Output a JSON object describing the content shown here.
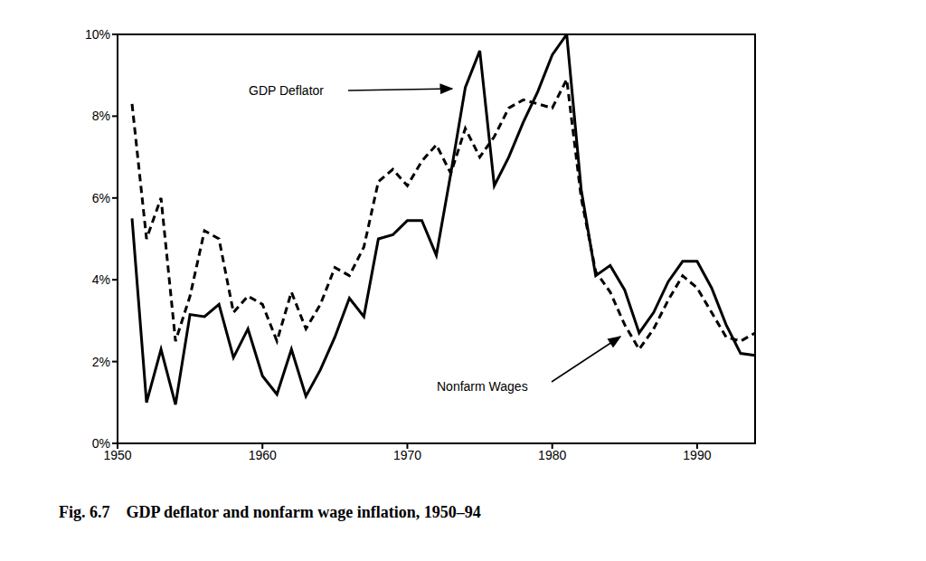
{
  "chart_data": {
    "type": "line",
    "title": "Fig. 6.7    GDP deflator and nonfarm wage inflation, 1950–94",
    "x": [
      1951,
      1952,
      1953,
      1954,
      1955,
      1956,
      1957,
      1958,
      1959,
      1960,
      1961,
      1962,
      1963,
      1964,
      1965,
      1966,
      1967,
      1968,
      1969,
      1970,
      1971,
      1972,
      1973,
      1974,
      1975,
      1976,
      1977,
      1978,
      1979,
      1980,
      1981,
      1982,
      1983,
      1984,
      1985,
      1986,
      1987,
      1988,
      1989,
      1990,
      1991,
      1992,
      1993,
      1994
    ],
    "series": [
      {
        "name": "GDP Deflator",
        "color": "#000000",
        "line_style": "solid",
        "values": [
          5.5,
          1.0,
          2.3,
          0.95,
          3.15,
          3.1,
          3.4,
          2.1,
          2.8,
          1.65,
          1.2,
          2.3,
          1.15,
          1.8,
          2.6,
          3.55,
          3.1,
          5.0,
          5.1,
          5.45,
          5.45,
          4.6,
          6.6,
          8.7,
          9.6,
          6.3,
          7.0,
          7.85,
          8.6,
          9.5,
          10.0,
          6.2,
          4.1,
          4.35,
          3.75,
          2.7,
          3.2,
          3.95,
          4.45,
          4.45,
          3.8,
          2.9,
          2.2,
          2.15
        ]
      },
      {
        "name": "Nonfarm Wages",
        "color": "#000000",
        "line_style": "dashed",
        "values": [
          8.3,
          5.0,
          6.0,
          2.5,
          3.6,
          5.2,
          5.0,
          3.2,
          3.6,
          3.4,
          2.5,
          3.7,
          2.8,
          3.4,
          4.3,
          4.1,
          4.8,
          6.4,
          6.7,
          6.3,
          6.9,
          7.3,
          6.6,
          7.7,
          7.0,
          7.5,
          8.2,
          8.4,
          8.3,
          8.2,
          8.9,
          6.0,
          4.2,
          3.7,
          2.9,
          2.3,
          2.8,
          3.5,
          4.1,
          3.8,
          3.2,
          2.6,
          2.5,
          2.7
        ]
      }
    ],
    "xlim": [
      1950,
      1994
    ],
    "xticks": [
      1950,
      1960,
      1970,
      1980,
      1990
    ],
    "ylim": [
      0,
      10
    ],
    "yticks": [
      {
        "value": 0,
        "label": "0%"
      },
      {
        "value": 2,
        "label": "2%"
      },
      {
        "value": 4,
        "label": "4%"
      },
      {
        "value": 6,
        "label": "6%"
      },
      {
        "value": 8,
        "label": "8%"
      },
      {
        "value": 10,
        "label": "10%"
      }
    ],
    "grid": false
  }
}
